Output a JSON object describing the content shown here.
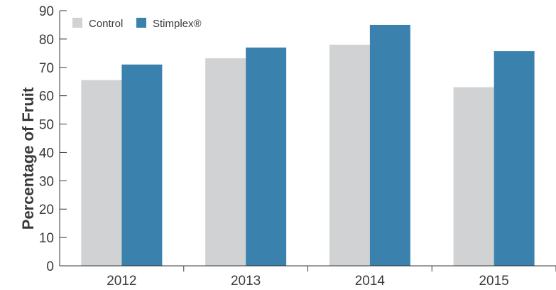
{
  "chart_data": {
    "type": "bar",
    "title": "",
    "xlabel": "",
    "ylabel": "Percentage of Fruit",
    "ylim": [
      0,
      90
    ],
    "yticks": [
      0,
      10,
      20,
      30,
      40,
      50,
      60,
      70,
      80,
      90
    ],
    "categories": [
      "2012",
      "2013",
      "2014",
      "2015"
    ],
    "series": [
      {
        "name": "Control",
        "color": "#d1d2d4",
        "values": [
          65.5,
          73.2,
          78.0,
          63.0
        ]
      },
      {
        "name": "Stimplex®",
        "color": "#3a82ad",
        "values": [
          71.0,
          77.0,
          85.0,
          75.7
        ]
      }
    ],
    "grid": false,
    "legend_position": "top-left"
  }
}
